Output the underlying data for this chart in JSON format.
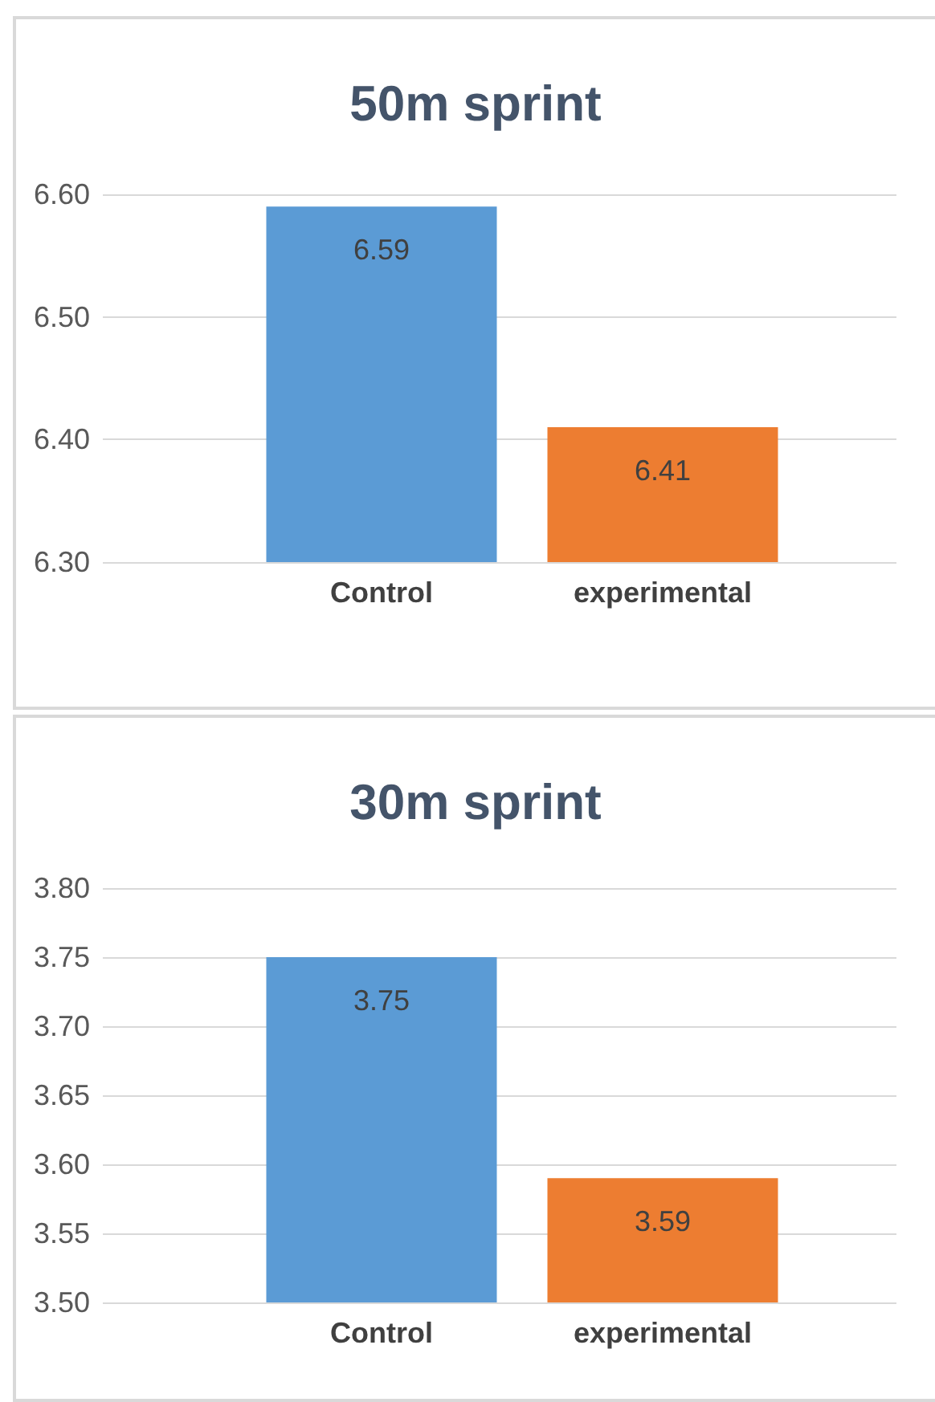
{
  "chart_data": [
    {
      "type": "bar",
      "title": "50m sprint",
      "categories": [
        "Control",
        "experimental"
      ],
      "values": [
        6.59,
        6.41
      ],
      "colors": [
        "#5b9bd5",
        "#ed7d31"
      ],
      "ylim": [
        6.3,
        6.6
      ],
      "yticks": [
        {
          "value": 6.3,
          "label": "6.30"
        },
        {
          "value": 6.4,
          "label": "6.40"
        },
        {
          "value": 6.5,
          "label": "6.50"
        },
        {
          "value": 6.6,
          "label": "6.60"
        }
      ],
      "grid": "y",
      "data_labels": true
    },
    {
      "type": "bar",
      "title": "30m sprint",
      "categories": [
        "Control",
        "experimental"
      ],
      "values": [
        3.75,
        3.59
      ],
      "colors": [
        "#5b9bd5",
        "#ed7d31"
      ],
      "ylim": [
        3.5,
        3.8
      ],
      "yticks": [
        {
          "value": 3.5,
          "label": "3.50"
        },
        {
          "value": 3.55,
          "label": "3.55"
        },
        {
          "value": 3.6,
          "label": "3.60"
        },
        {
          "value": 3.65,
          "label": "3.65"
        },
        {
          "value": 3.7,
          "label": "3.70"
        },
        {
          "value": 3.75,
          "label": "3.75"
        },
        {
          "value": 3.8,
          "label": "3.80"
        }
      ],
      "grid": "y",
      "data_labels": true
    }
  ]
}
